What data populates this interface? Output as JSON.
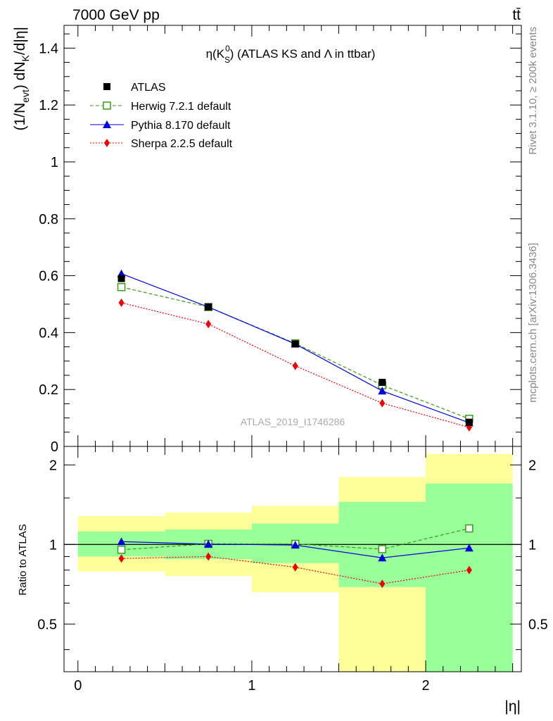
{
  "header": {
    "energy_label": "7000 GeV pp",
    "process_label": "tt̄"
  },
  "side_labels": {
    "rivet": "Rivet 3.1.10, ≥ 200k events",
    "mcplots": "mcplots.cern.ch [arXiv:1306.3436]"
  },
  "chart_data": [
    {
      "type": "scatter",
      "title": "η(K⁰S) (ATLAS KS and Λ in ttbar)",
      "title_parts": {
        "prefix": "η(K",
        "sub": "S",
        "sup": "0",
        "suffix": ") (ATLAS KS and Λ in ttbar)"
      },
      "ylabel": "(1/Nevt) dNK/d|η|",
      "ylabel_parts": {
        "a": "(1/N",
        "sub1": "evt",
        "b": ") dN",
        "sub2": "K",
        "c": "/d|η|"
      },
      "watermark": "ATLAS_2019_I1746286",
      "xlim": [
        -0.08,
        2.55
      ],
      "ylim": [
        0,
        1.48
      ],
      "y_ticks": [
        0,
        0.2,
        0.4,
        0.6,
        0.8,
        1,
        1.2,
        1.4
      ],
      "y_tick_labels": [
        "0",
        "0.2",
        "0.4",
        "0.6",
        "0.8",
        "1",
        "1.2",
        "1.4"
      ],
      "x": [
        0.25,
        0.75,
        1.25,
        1.75,
        2.25
      ],
      "series": [
        {
          "name": "ATLAS",
          "color": "#000000",
          "marker": "square-filled",
          "values": [
            0.59,
            0.49,
            0.36,
            0.225,
            0.085
          ]
        },
        {
          "name": "Herwig 7.2.1 default",
          "color": "#3a9a1a",
          "marker": "square-open",
          "line": "dashed",
          "values": [
            0.56,
            0.49,
            0.362,
            0.215,
            0.097
          ]
        },
        {
          "name": "Pythia 8.170 default",
          "color": "#0000dd",
          "marker": "triangle",
          "line": "solid",
          "values": [
            0.607,
            0.49,
            0.36,
            0.195,
            0.083
          ]
        },
        {
          "name": "Sherpa 2.2.5 default",
          "color": "#ee0000",
          "marker": "diamond",
          "line": "dotted",
          "values": [
            0.505,
            0.43,
            0.283,
            0.152,
            0.067
          ]
        }
      ]
    },
    {
      "type": "scatter",
      "ylabel": "Ratio to ATLAS",
      "xlabel": "|η|",
      "xlim": [
        -0.08,
        2.55
      ],
      "ylim": [
        0.33,
        2.35
      ],
      "y_scale": "log",
      "y_ticks": [
        0.5,
        1,
        2
      ],
      "y_tick_labels": [
        "0.5",
        "1",
        "2"
      ],
      "x_ticks": [
        0,
        1,
        2
      ],
      "x_tick_labels": [
        "0",
        "1",
        "2"
      ],
      "bins": [
        [
          0,
          0.5
        ],
        [
          0.5,
          1
        ],
        [
          1,
          1.5
        ],
        [
          1.5,
          2
        ],
        [
          2,
          2.5
        ]
      ],
      "band_green": [
        [
          0.9,
          1.12
        ],
        [
          0.88,
          1.14
        ],
        [
          0.85,
          1.2
        ],
        [
          0.69,
          1.45
        ],
        [
          0.33,
          1.7
        ]
      ],
      "band_yellow": [
        [
          0.79,
          1.28
        ],
        [
          0.76,
          1.32
        ],
        [
          0.66,
          1.4
        ],
        [
          0.33,
          1.8
        ],
        [
          0.33,
          2.2
        ]
      ],
      "x": [
        0.25,
        0.75,
        1.25,
        1.75,
        2.25
      ],
      "series": [
        {
          "name": "Herwig 7.2.1 default",
          "color": "#3a9a1a",
          "values": [
            0.955,
            1.005,
            1.005,
            0.96,
            1.15
          ]
        },
        {
          "name": "Pythia 8.170 default",
          "color": "#0000dd",
          "values": [
            1.025,
            1.003,
            0.995,
            0.89,
            0.97
          ]
        },
        {
          "name": "Sherpa 2.2.5 default",
          "color": "#ee0000",
          "values": [
            0.885,
            0.9,
            0.82,
            0.71,
            0.8
          ]
        }
      ]
    }
  ]
}
